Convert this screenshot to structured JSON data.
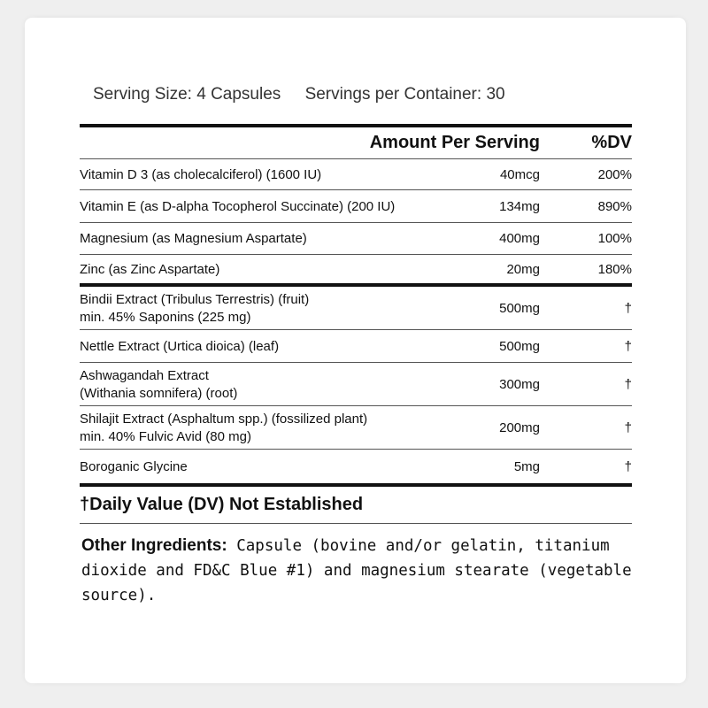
{
  "serving": {
    "size": "Serving Size:  4 Capsules",
    "per_container": "Servings per Container:  30"
  },
  "header": {
    "amount": "Amount Per Serving",
    "dv": "%DV"
  },
  "rows": [
    {
      "name": "Vitamin D 3 (as cholecalciferol) (1600 IU)",
      "name2": "",
      "amount": "40mcg",
      "dv": "200%"
    },
    {
      "name": "Vitamin E (as D-alpha Tocopherol Succinate) (200 IU)",
      "name2": "",
      "amount": "134mg",
      "dv": "890%"
    },
    {
      "name": "Magnesium (as Magnesium Aspartate)",
      "name2": "",
      "amount": "400mg",
      "dv": "100%"
    },
    {
      "name": "Zinc (as Zinc Aspartate)",
      "name2": "",
      "amount": "20mg",
      "dv": "180%"
    },
    {
      "name": "Bindii Extract (Tribulus Terrestris) (fruit)",
      "name2": "min. 45% Saponins (225 mg)",
      "amount": "500mg",
      "dv": "†"
    },
    {
      "name": "Nettle Extract (Urtica dioica) (leaf)",
      "name2": "",
      "amount": "500mg",
      "dv": "†"
    },
    {
      "name": "Ashwagandah Extract",
      "name2": "(Withania somnifera) (root)",
      "amount": "300mg",
      "dv": "†"
    },
    {
      "name": "Shilajit Extract (Asphaltum spp.) (fossilized plant)",
      "name2": "min. 40% Fulvic Avid (80 mg)",
      "amount": "200mg",
      "dv": "†"
    },
    {
      "name": "Boroganic Glycine",
      "name2": "",
      "amount": "5mg",
      "dv": "†"
    }
  ],
  "dv_note": "†Daily Value (DV) Not Established",
  "other": {
    "label": "Other Ingredients:",
    "text": " Capsule (bovine and/or gelatin, titanium dioxide and FD&C Blue #1) and magnesium stearate (vegetable source)."
  }
}
